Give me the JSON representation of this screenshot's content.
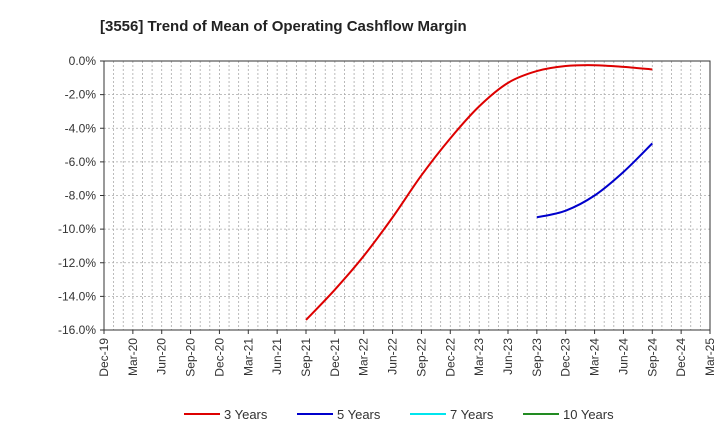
{
  "chart_data": {
    "type": "line",
    "title": "[3556]  Trend of Mean of Operating Cashflow Margin",
    "xlabel": "",
    "ylabel": "",
    "x_ticks": [
      "Dec-19",
      "Mar-20",
      "Jun-20",
      "Sep-20",
      "Dec-20",
      "Mar-21",
      "Jun-21",
      "Sep-21",
      "Dec-21",
      "Mar-22",
      "Jun-22",
      "Sep-22",
      "Dec-22",
      "Mar-23",
      "Jun-23",
      "Sep-23",
      "Dec-23",
      "Mar-24",
      "Jun-24",
      "Sep-24",
      "Dec-24",
      "Mar-25"
    ],
    "y_ticks": [
      "0.0%",
      "-2.0%",
      "-4.0%",
      "-6.0%",
      "-8.0%",
      "-10.0%",
      "-12.0%",
      "-14.0%",
      "-16.0%"
    ],
    "ylim": [
      -16,
      0
    ],
    "grid": true,
    "legend_position": "bottom",
    "series": [
      {
        "name": "3 Years",
        "color": "#dd0000",
        "x": [
          "Sep-21",
          "Dec-21",
          "Mar-22",
          "Jun-22",
          "Sep-22",
          "Dec-22",
          "Mar-23",
          "Jun-23",
          "Sep-23",
          "Dec-23",
          "Mar-24",
          "Jun-24",
          "Sep-24"
        ],
        "values": [
          -15.4,
          -13.6,
          -11.6,
          -9.3,
          -6.8,
          -4.6,
          -2.7,
          -1.3,
          -0.6,
          -0.3,
          -0.25,
          -0.35,
          -0.5
        ]
      },
      {
        "name": "5 Years",
        "color": "#0000cc",
        "x": [
          "Sep-23",
          "Dec-23",
          "Mar-24",
          "Jun-24",
          "Sep-24"
        ],
        "values": [
          -9.3,
          -8.9,
          -8.0,
          -6.6,
          -4.9
        ]
      },
      {
        "name": "7 Years",
        "color": "#00e5ee",
        "x": [],
        "values": []
      },
      {
        "name": "10 Years",
        "color": "#228b22",
        "x": [],
        "values": []
      }
    ]
  }
}
